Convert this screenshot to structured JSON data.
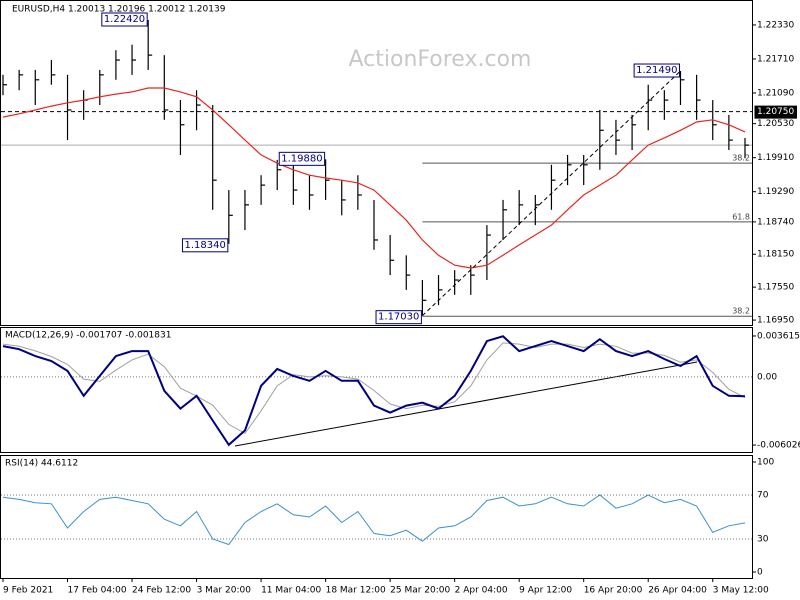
{
  "chart_data": [
    {
      "type": "ohlc",
      "title": "EURUSD,H4 1.20013 1.20196 1.20012 1.20139",
      "watermark": "ActionForex.com",
      "categories": [
        "9 Feb 2021",
        null,
        null,
        null,
        "17 Feb 04:00",
        null,
        null,
        null,
        "24 Feb 12:00",
        null,
        null,
        null,
        "3 Mar 20:00",
        null,
        null,
        null,
        "11 Mar 04:00",
        null,
        null,
        null,
        "18 Mar 12:00",
        null,
        null,
        null,
        "25 Mar 20:00",
        null,
        null,
        null,
        "2 Apr 04:00",
        null,
        null,
        null,
        "9 Apr 12:00",
        null,
        null,
        null,
        "16 Apr 20:00",
        null,
        null,
        null,
        "26 Apr 04:00",
        null,
        null,
        null,
        "3 May 12:00",
        null,
        null
      ],
      "high": [
        1.2142,
        1.2151,
        1.2151,
        1.2169,
        1.2142,
        1.2114,
        1.2151,
        1.2187,
        1.2197,
        1.2242,
        1.2178,
        1.2096,
        1.2114,
        1.2087,
        1.1932,
        1.1932,
        1.1959,
        1.1987,
        1.1978,
        1.1959,
        1.1988,
        1.195,
        1.1959,
        1.1914,
        1.185,
        1.1813,
        1.1768,
        1.1777,
        1.1786,
        1.1795,
        1.1868,
        1.1914,
        1.1932,
        1.1923,
        1.1978,
        1.1996,
        1.1996,
        1.2078,
        1.206,
        1.2069,
        1.2124,
        1.2114,
        1.2149,
        1.2142,
        1.2096,
        1.2069,
        1.2027
      ],
      "low": [
        1.2105,
        1.2114,
        1.2087,
        1.2124,
        1.2023,
        1.206,
        1.2087,
        1.2133,
        1.2142,
        1.2151,
        1.206,
        1.1996,
        1.2041,
        1.1896,
        1.1834,
        1.1859,
        1.1905,
        1.1932,
        1.1905,
        1.1896,
        1.1914,
        1.1886,
        1.1896,
        1.1823,
        1.1777,
        1.175,
        1.1703,
        1.1722,
        1.1741,
        1.1741,
        1.1768,
        1.1841,
        1.1868,
        1.1868,
        1.1896,
        1.1941,
        1.1941,
        1.1969,
        1.1996,
        1.2005,
        1.2041,
        1.206,
        1.2087,
        1.206,
        1.2023,
        1.2005,
        1.199
      ],
      "close": [
        1.2124,
        1.2142,
        1.2133,
        1.2142,
        1.2078,
        1.2096,
        1.2142,
        1.2169,
        1.2169,
        1.2178,
        1.2078,
        1.2051,
        1.2087,
        1.195,
        1.1886,
        1.1905,
        1.1941,
        1.1969,
        1.1932,
        1.1923,
        1.195,
        1.1914,
        1.1923,
        1.1841,
        1.1804,
        1.1777,
        1.1731,
        1.175,
        1.1768,
        1.1777,
        1.185,
        1.1896,
        1.1905,
        1.1905,
        1.195,
        1.1978,
        1.1978,
        1.2041,
        1.2023,
        1.2051,
        1.2096,
        1.2096,
        1.2133,
        1.2096,
        1.2051,
        1.2023,
        1.20139
      ],
      "color": "#000000",
      "ma": {
        "color": "#e8261f",
        "values": [
          1.2065,
          1.2071,
          1.2078,
          1.2085,
          1.2091,
          1.2096,
          1.2102,
          1.2107,
          1.2111,
          1.2118,
          1.2118,
          1.2111,
          1.2102,
          1.2078,
          1.2051,
          1.2023,
          1.1996,
          1.1981,
          1.1969,
          1.1959,
          1.1954,
          1.195,
          1.1945,
          1.1932,
          1.1905,
          1.1877,
          1.1841,
          1.1813,
          1.1795,
          1.179,
          1.1795,
          1.1813,
          1.1832,
          1.185,
          1.1868,
          1.1896,
          1.1923,
          1.1941,
          1.1959,
          1.1987,
          1.2014,
          1.2027,
          1.2041,
          1.2056,
          1.206,
          1.2051,
          1.2038
        ]
      },
      "ylim": [
        1.1686,
        1.2273
      ],
      "yticks": [
        {
          "value": 1.2233,
          "label": "1.22330"
        },
        {
          "value": 1.2171,
          "label": "1.21710"
        },
        {
          "value": 1.2109,
          "label": "1.21090"
        },
        {
          "value": 1.2053,
          "label": "1.20530"
        },
        {
          "value": 1.1991,
          "label": "1.19910"
        },
        {
          "value": 1.1929,
          "label": "1.19290"
        },
        {
          "value": 1.1874,
          "label": "1.18740"
        },
        {
          "value": 1.1815,
          "label": "1.18150"
        },
        {
          "value": 1.1755,
          "label": "1.17550"
        },
        {
          "value": 1.1695,
          "label": "1.16950"
        }
      ],
      "levels": [
        {
          "value": 1.2075,
          "label": "1.20750"
        }
      ],
      "annotations": [
        {
          "value": 1.2242,
          "label": "1.22420"
        },
        {
          "value": 1.1834,
          "label": "1.18340"
        },
        {
          "value": 1.1988,
          "label": "1.19880"
        },
        {
          "value": 1.1703,
          "label": "1.17030"
        },
        {
          "value": 1.2149,
          "label": "1.21490"
        }
      ],
      "fib_levels": [
        {
          "ratio": 38.2,
          "price": 1.1981
        },
        {
          "ratio": 61.8,
          "price": 1.1874
        },
        {
          "ratio": 38.2,
          "price": 1.1702
        }
      ]
    },
    {
      "type": "macd",
      "label": "MACD(12,26,9) -0.001707 -0.001831",
      "ylim": [
        -0.00664,
        0.00432
      ],
      "yticks": [
        0.003615,
        -0.006026
      ],
      "levels": [
        {
          "value": 0,
          "label": "0.00"
        }
      ],
      "macd": {
        "color": "#000080",
        "values": [
          0.00272,
          0.00245,
          0.00184,
          0.0014,
          0.00053,
          -0.00167,
          9e-05,
          0.00184,
          0.00228,
          0.00228,
          -0.00123,
          -0.0028,
          -0.00167,
          -0.00386,
          -0.006,
          -0.00473,
          -0.00079,
          0.0007,
          9e-05,
          -0.00035,
          0.00053,
          -0.00035,
          -0.00035,
          -0.00254,
          -0.00316,
          -0.00254,
          -0.00228,
          -0.0028,
          -0.00167,
          0.00053,
          0.00316,
          0.00359,
          0.00228,
          0.00272,
          0.00316,
          0.00272,
          0.00228,
          0.00333,
          0.00228,
          0.00184,
          0.00228,
          0.00158,
          0.00096,
          0.00184,
          -0.00079,
          -0.00167,
          -0.00171
        ]
      },
      "signal": {
        "color": "#a0a0a0",
        "values": [
          0.0029,
          0.0027,
          0.0023,
          0.0018,
          0.0011,
          -0.0002,
          -0.0004,
          0.0006,
          0.0015,
          0.002,
          0.0009,
          -0.001,
          -0.0017,
          -0.0025,
          -0.0042,
          -0.005,
          -0.003,
          -0.0008,
          0.0002,
          0,
          0.0001,
          0,
          -0.0002,
          -0.0012,
          -0.0024,
          -0.0028,
          -0.0025,
          -0.0026,
          -0.0022,
          -0.0008,
          0.0015,
          0.003,
          0.0029,
          0.0026,
          0.0029,
          0.0029,
          0.0026,
          0.0029,
          0.0027,
          0.0021,
          0.0021,
          0.0019,
          0.0013,
          0.0015,
          0.0004,
          -0.0011,
          -0.00183
        ]
      }
    },
    {
      "type": "rsi",
      "label": "RSI(14) 44.6112",
      "ylim": [
        0,
        100
      ],
      "yticks": [
        100,
        0
      ],
      "levels": [
        70,
        30
      ],
      "color": "#3a8fd8",
      "values": [
        68,
        66,
        63,
        62,
        40,
        55,
        66,
        68,
        65,
        62,
        48,
        42,
        55,
        30,
        25,
        45,
        55,
        62,
        52,
        50,
        60,
        45,
        55,
        35,
        33,
        38,
        28,
        40,
        42,
        50,
        65,
        68,
        60,
        62,
        68,
        62,
        60,
        70,
        58,
        62,
        70,
        63,
        66,
        60,
        36,
        42,
        44.6112
      ]
    }
  ]
}
